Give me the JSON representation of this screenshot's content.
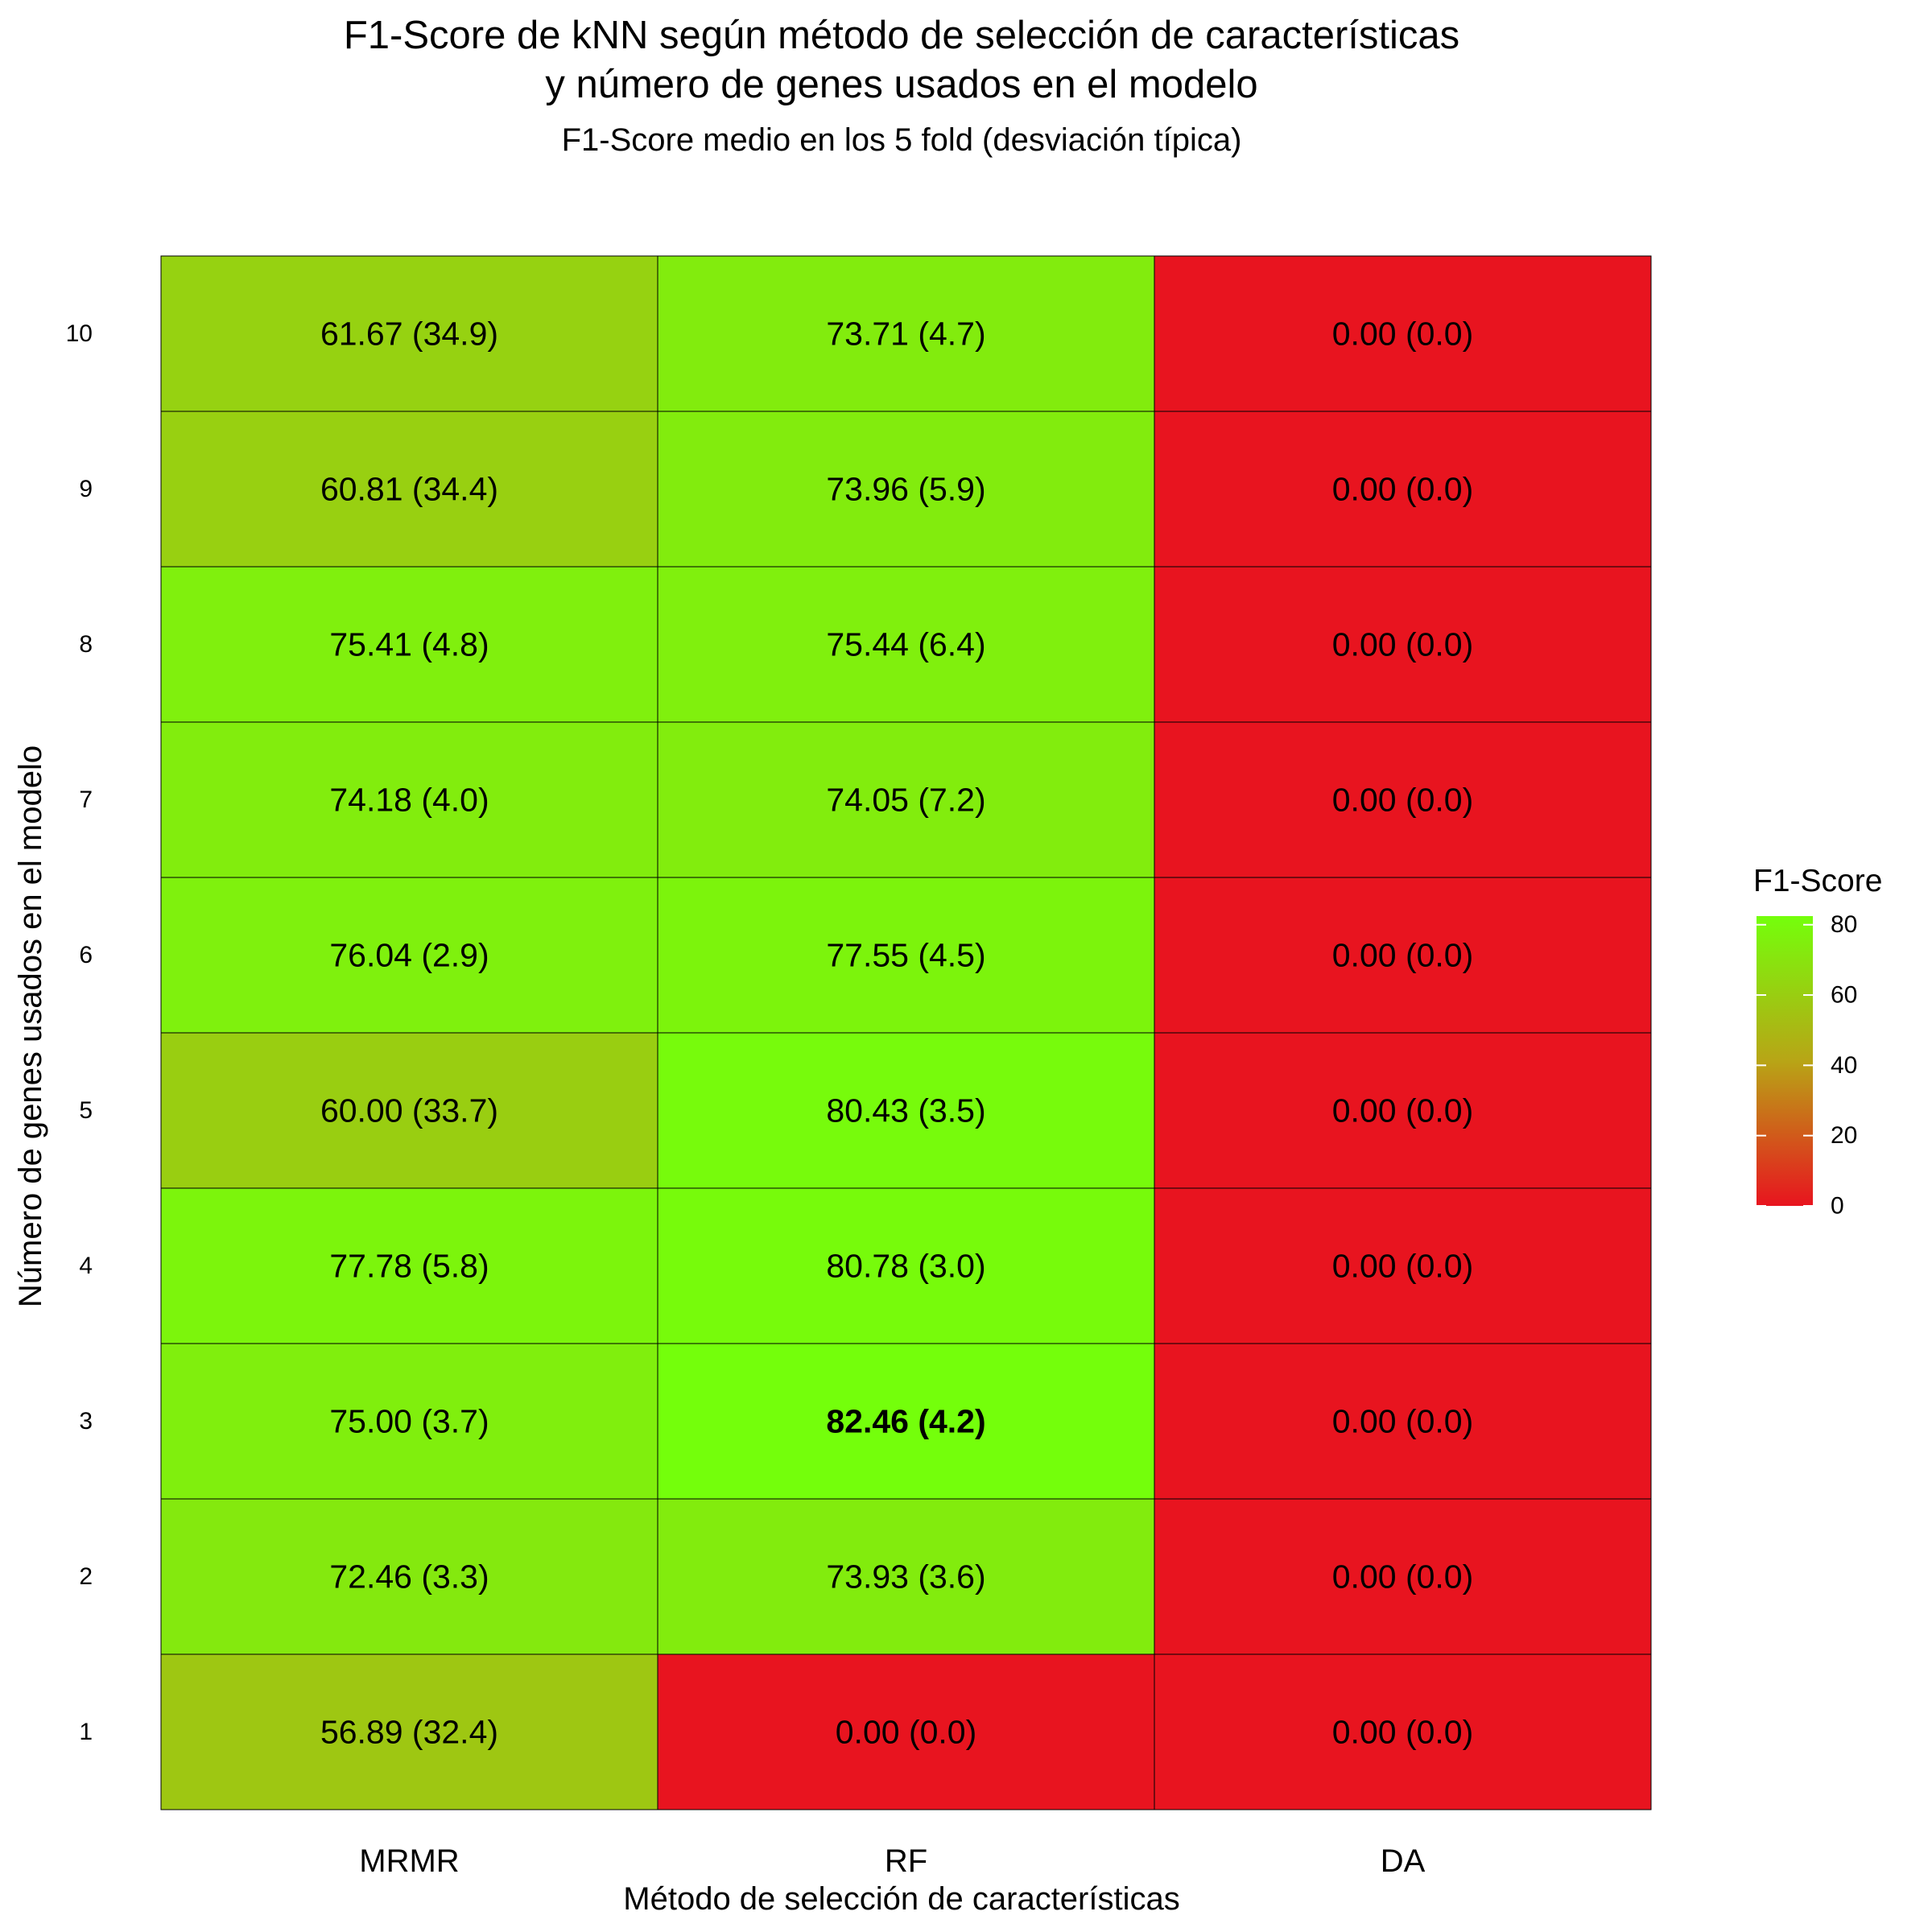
{
  "chart_data": {
    "type": "heatmap",
    "title_line1": "F1-Score de kNN según método de selección de características",
    "title_line2": "y número de genes usados en el modelo",
    "subtitle": "F1-Score medio en los 5 fold (desviación típica)",
    "xlabel": "Método de selección de características",
    "ylabel": "Número de genes usados en el modelo",
    "x_categories": [
      "MRMR",
      "RF",
      "DA"
    ],
    "y_categories": [
      "1",
      "2",
      "3",
      "4",
      "5",
      "6",
      "7",
      "8",
      "9",
      "10"
    ],
    "values": {
      "MRMR": [
        56.89,
        72.46,
        75.0,
        77.78,
        60.0,
        76.04,
        74.18,
        75.41,
        60.81,
        61.67
      ],
      "RF": [
        0.0,
        73.93,
        82.46,
        80.78,
        80.43,
        77.55,
        74.05,
        75.44,
        73.96,
        73.71
      ],
      "DA": [
        0.0,
        0.0,
        0.0,
        0.0,
        0.0,
        0.0,
        0.0,
        0.0,
        0.0,
        0.0
      ]
    },
    "labels": {
      "MRMR": [
        "56.89 (32.4)",
        "72.46 (3.3)",
        "75.00 (3.7)",
        "77.78 (5.8)",
        "60.00 (33.7)",
        "76.04 (2.9)",
        "74.18 (4.0)",
        "75.41 (4.8)",
        "60.81 (34.4)",
        "61.67 (34.9)"
      ],
      "RF": [
        "0.00 (0.0)",
        "73.93 (3.6)",
        "82.46 (4.2)",
        "80.78 (3.0)",
        "80.43 (3.5)",
        "77.55 (4.5)",
        "74.05 (7.2)",
        "75.44 (6.4)",
        "73.96 (5.9)",
        "73.71 (4.7)"
      ],
      "DA": [
        "0.00 (0.0)",
        "0.00 (0.0)",
        "0.00 (0.0)",
        "0.00 (0.0)",
        "0.00 (0.0)",
        "0.00 (0.0)",
        "0.00 (0.0)",
        "0.00 (0.0)",
        "0.00 (0.0)",
        "0.00 (0.0)"
      ]
    },
    "highlight": {
      "method": "RF",
      "genes": "3"
    },
    "legend": {
      "title": "F1-Score",
      "ticks": [
        0,
        20,
        40,
        60,
        80
      ],
      "range": [
        0,
        82.46
      ],
      "placement": "right"
    },
    "colors": {
      "low": "#e8141f",
      "high": "#74ff0b",
      "grid": "#000000"
    }
  }
}
